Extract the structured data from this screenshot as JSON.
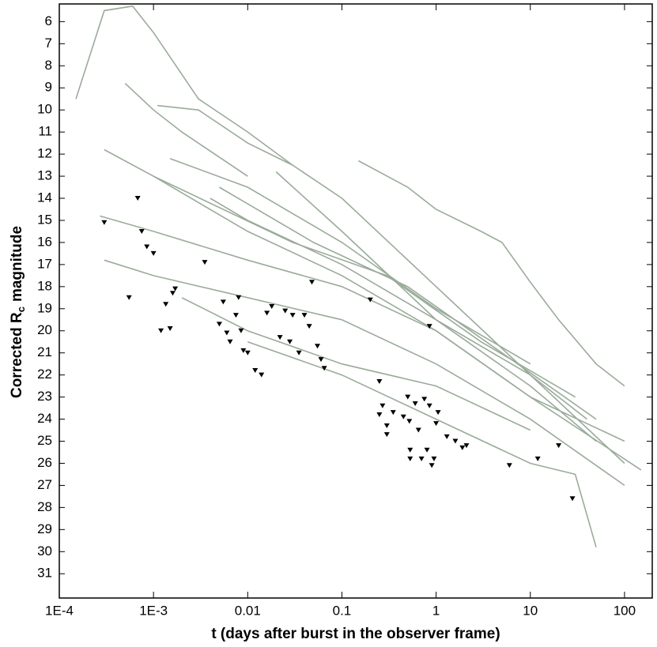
{
  "chart_data": {
    "type": "line",
    "xscale": "log",
    "xlabel": "t (days after burst in the observer frame)",
    "ylabel": [
      "Corrected R",
      "c",
      "magnitude"
    ],
    "xlim": [
      0.0001,
      197
    ],
    "ylim": [
      5.2,
      32.1
    ],
    "y_inverted": true,
    "xticks": [
      {
        "value": 0.0001,
        "label": "1E-4"
      },
      {
        "value": 0.001,
        "label": "1E-3"
      },
      0.01,
      0.1,
      1,
      10,
      100
    ],
    "yticks": [
      6,
      7,
      8,
      9,
      10,
      11,
      12,
      13,
      14,
      15,
      16,
      17,
      18,
      19,
      20,
      21,
      22,
      23,
      24,
      25,
      26,
      27,
      28,
      29,
      30,
      31
    ],
    "color": "#9aab9a",
    "series": [
      {
        "x": [
          0.00015,
          0.0003,
          0.0006,
          0.001,
          0.003,
          0.01,
          0.03
        ],
        "values": [
          9.5,
          5.5,
          5.3,
          6.5,
          9.5,
          11,
          12.5
        ]
      },
      {
        "x": [
          0.15,
          0.5,
          1,
          3,
          5,
          10,
          20,
          50,
          100
        ],
        "values": [
          12.3,
          13.5,
          14.5,
          15.5,
          16,
          17.8,
          19.5,
          21.5,
          22.5
        ]
      },
      {
        "x": [
          0.0011,
          0.003,
          0.01,
          0.03,
          0.1,
          1,
          10,
          100
        ],
        "values": [
          9.8,
          10,
          11.5,
          12.5,
          14,
          18,
          22,
          26
        ]
      },
      {
        "x": [
          0.0005,
          0.001,
          0.002,
          0.01
        ],
        "values": [
          8.8,
          10,
          11,
          13
        ]
      },
      {
        "x": [
          0.0003,
          0.001,
          0.01,
          0.1,
          1,
          10,
          150
        ],
        "values": [
          11.8,
          13,
          15.5,
          17.5,
          20,
          23,
          26.3
        ]
      },
      {
        "x": [
          0.00027,
          0.001,
          0.01,
          0.1,
          1,
          10,
          100
        ],
        "values": [
          14.8,
          15.5,
          16.8,
          18,
          20,
          23,
          25
        ]
      },
      {
        "x": [
          0.0003,
          0.001,
          0.01,
          0.1,
          1,
          10,
          100
        ],
        "values": [
          16.8,
          17.5,
          18.5,
          19.5,
          21.5,
          24,
          27
        ]
      },
      {
        "x": [
          0.004,
          0.01,
          0.1,
          1,
          10,
          50
        ],
        "values": [
          14,
          15,
          17,
          19.5,
          22.5,
          25
        ]
      },
      {
        "x": [
          0.02,
          0.1,
          1,
          10,
          40
        ],
        "values": [
          12.8,
          15.5,
          19.5,
          22,
          24
        ]
      },
      {
        "x": [
          0.01,
          0.1,
          1,
          10,
          30,
          50
        ],
        "values": [
          20.5,
          22,
          24,
          26,
          26.5,
          29.8
        ]
      },
      {
        "x": [
          0.002,
          0.01,
          0.1,
          1,
          10
        ],
        "values": [
          18.5,
          20,
          21.5,
          22.5,
          24.5
        ]
      },
      {
        "x": [
          0.005,
          0.05,
          0.5,
          5,
          50
        ],
        "values": [
          13.5,
          16,
          18,
          21,
          24
        ]
      },
      {
        "x": [
          0.0015,
          0.01,
          0.1,
          1,
          10
        ],
        "values": [
          12.2,
          13.5,
          16,
          19,
          21.5
        ]
      },
      {
        "x": [
          0.001,
          0.03,
          0.3,
          3,
          30
        ],
        "values": [
          13,
          16,
          17.5,
          20.5,
          23
        ]
      }
    ],
    "limits": {
      "color": "#000000",
      "x": [
        0.0003,
        0.00055,
        0.00068,
        0.00075,
        0.00085,
        0.001,
        0.0012,
        0.00135,
        0.0015,
        0.0016,
        0.0017,
        0.0035,
        0.005,
        0.0055,
        0.006,
        0.0065,
        0.0075,
        0.008,
        0.0085,
        0.009,
        0.01,
        0.012,
        0.014,
        0.016,
        0.018,
        0.022,
        0.025,
        0.028,
        0.03,
        0.035,
        0.04,
        0.045,
        0.048,
        0.055,
        0.06,
        0.065,
        0.2,
        0.25,
        0.25,
        0.27,
        0.3,
        0.3,
        0.35,
        0.45,
        0.5,
        0.52,
        0.53,
        0.53,
        0.6,
        0.65,
        0.7,
        0.75,
        0.8,
        0.85,
        0.9,
        0.95,
        1,
        1.05,
        1.3,
        1.6,
        1.9,
        2.1,
        6,
        12,
        20,
        28,
        0.85
      ],
      "values": [
        15.1,
        18.5,
        14,
        15.5,
        16.2,
        16.5,
        20,
        18.8,
        19.9,
        18.3,
        18.1,
        16.9,
        19.7,
        18.7,
        20.1,
        20.5,
        19.3,
        18.5,
        20,
        20.9,
        21,
        21.8,
        22,
        19.2,
        18.9,
        20.3,
        19.1,
        20.5,
        19.3,
        21,
        19.3,
        19.8,
        17.8,
        20.7,
        21.3,
        21.7,
        18.6,
        22.3,
        23.8,
        23.4,
        24.3,
        24.7,
        23.7,
        23.9,
        23,
        24.1,
        25.4,
        25.8,
        23.3,
        24.5,
        25.8,
        23.1,
        25.4,
        19.8,
        26.1,
        25.8,
        24.2,
        23.7,
        24.8,
        25,
        25.3,
        25.2,
        26.1,
        25.8,
        25.2,
        27.6,
        23.4
      ]
    }
  }
}
